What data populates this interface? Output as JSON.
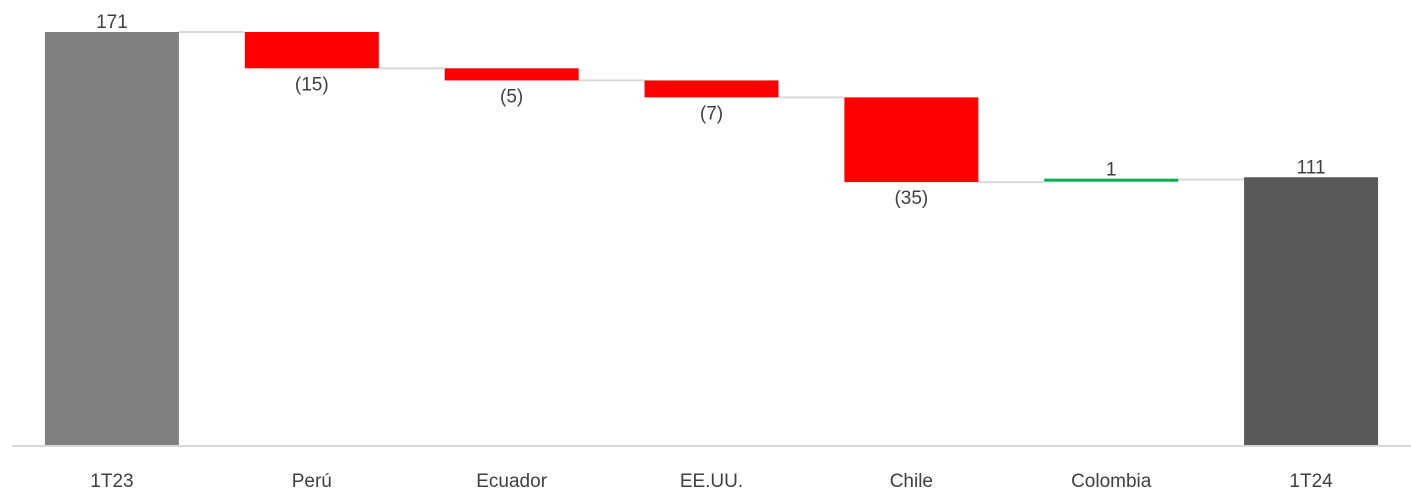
{
  "chart_data": {
    "type": "waterfall",
    "title": "",
    "xlabel": "",
    "ylabel": "",
    "categories": [
      "1T23",
      "Perú",
      "Ecuador",
      "EE.UU.",
      "Chile",
      "Colombia",
      "1T24"
    ],
    "values": [
      171,
      -15,
      -5,
      -7,
      -35,
      1,
      111
    ],
    "kinds": [
      "total",
      "delta",
      "delta",
      "delta",
      "delta",
      "delta",
      "total"
    ],
    "value_labels": [
      "171",
      "(15)",
      "(5)",
      "(7)",
      "(35)",
      "1",
      "111"
    ],
    "ylim": [
      0,
      171
    ],
    "grid": false,
    "legend": "none",
    "colors": {
      "start_total": "#808080",
      "end_total": "#595959",
      "decrease": "#ff0000",
      "increase": "#00b050",
      "connector": "#d9d9d9",
      "axis": "#d9d9d9",
      "text": "#404040"
    }
  }
}
